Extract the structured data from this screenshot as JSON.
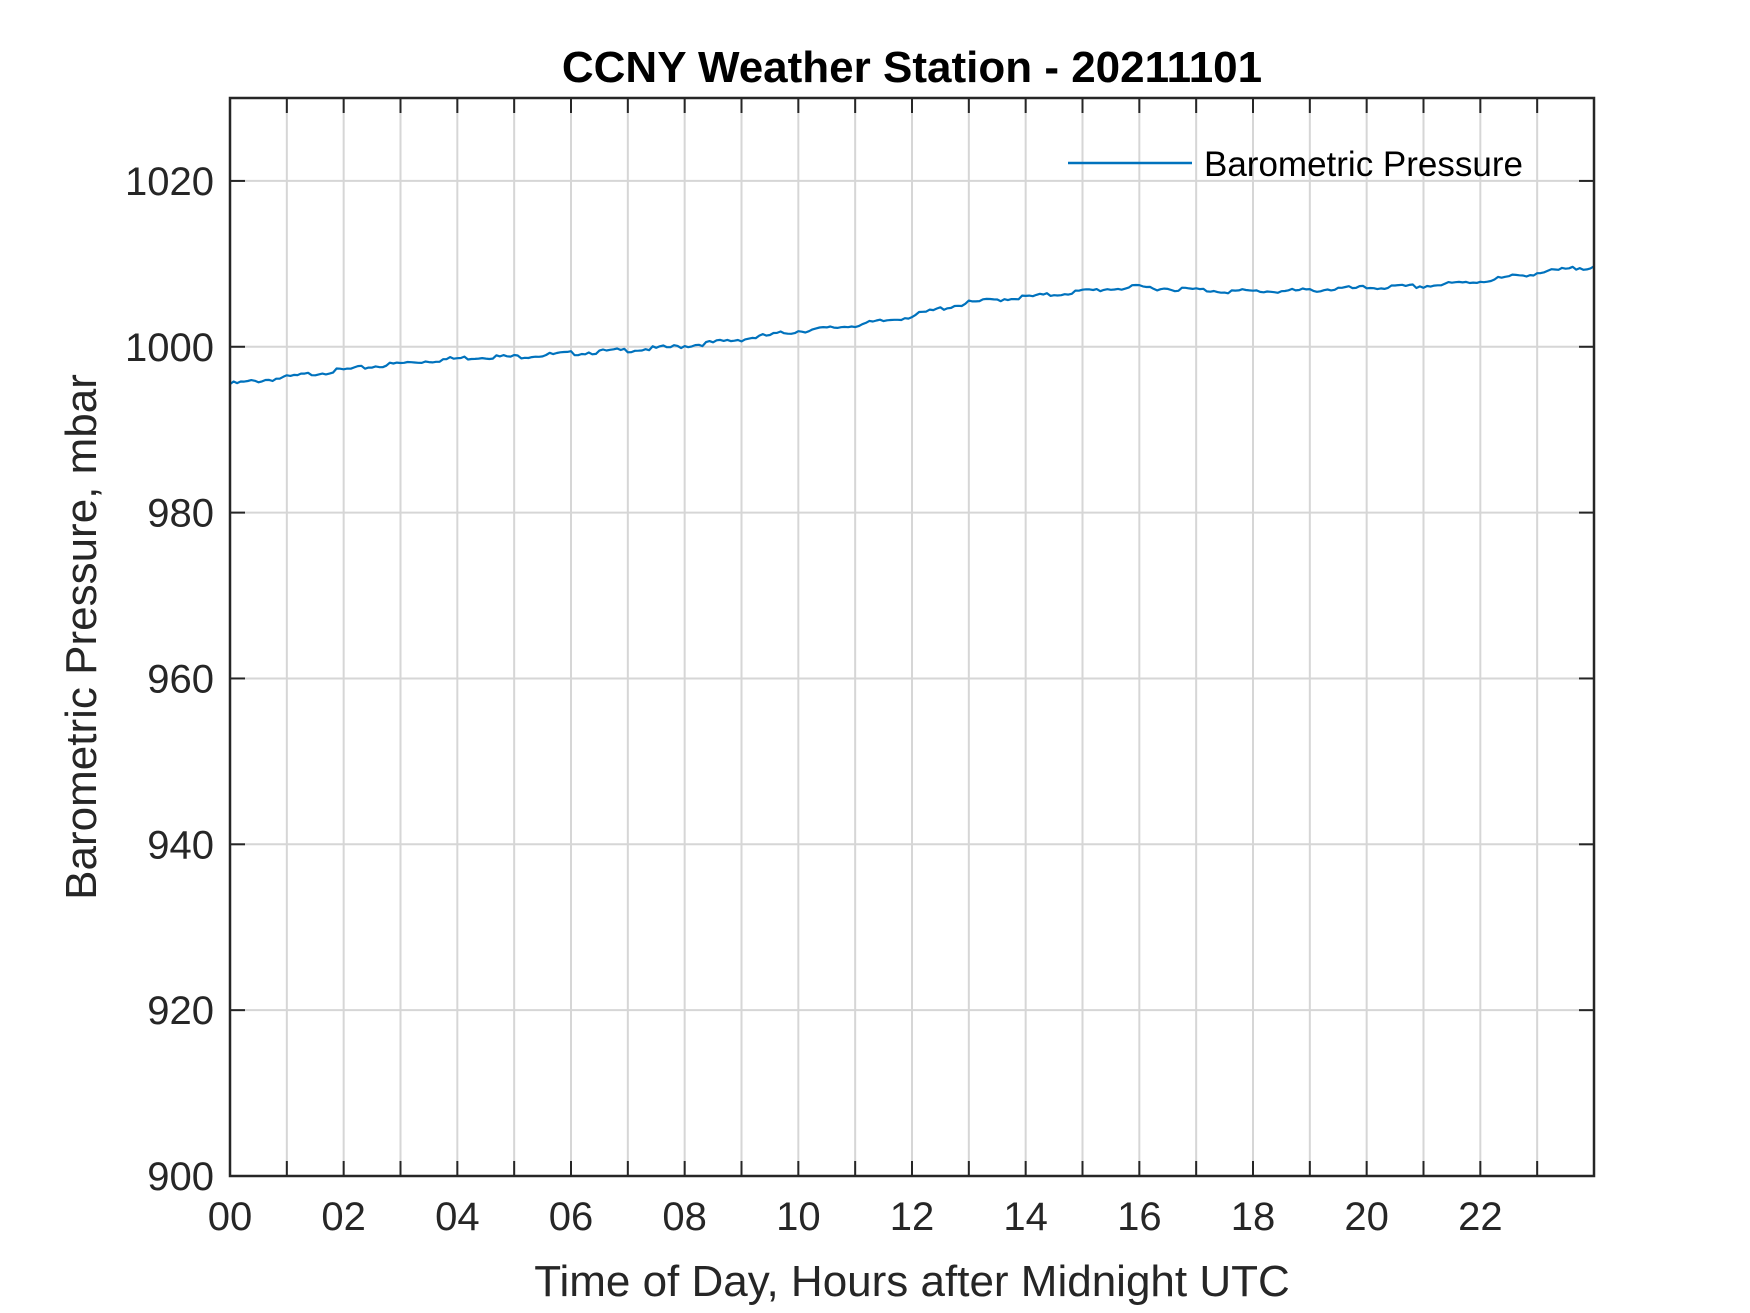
{
  "chart_data": {
    "type": "line",
    "title": "CCNY Weather Station - 20211101",
    "xlabel": "Time of Day, Hours after Midnight UTC",
    "ylabel": "Barometric Pressure, mbar",
    "xlim": [
      0,
      24
    ],
    "ylim": [
      900,
      1030
    ],
    "x_tick_values": [
      0,
      2,
      4,
      6,
      8,
      10,
      12,
      14,
      16,
      18,
      20,
      22
    ],
    "x_tick_labels": [
      "00",
      "02",
      "04",
      "06",
      "08",
      "10",
      "12",
      "14",
      "16",
      "18",
      "20",
      "22"
    ],
    "y_tick_values": [
      900,
      920,
      940,
      960,
      980,
      1000,
      1020
    ],
    "y_tick_labels": [
      "900",
      "920",
      "940",
      "960",
      "980",
      "1000",
      "1020"
    ],
    "grid": true,
    "legend_position": "top-right",
    "series": [
      {
        "name": "Barometric Pressure",
        "color": "#0072BD",
        "x": [
          0,
          0.5,
          1,
          1.5,
          2,
          2.5,
          3,
          3.5,
          4,
          4.5,
          5,
          5.5,
          6,
          6.5,
          7,
          7.5,
          8,
          8.5,
          9,
          9.5,
          10,
          10.5,
          11,
          11.5,
          12,
          12.5,
          13,
          13.5,
          14,
          14.5,
          15,
          15.5,
          16,
          16.5,
          17,
          17.5,
          18,
          18.5,
          19,
          19.5,
          20,
          20.5,
          21,
          21.5,
          22,
          22.5,
          23,
          23.5,
          24
        ],
        "y": [
          995.5,
          995.9,
          996.3,
          996.8,
          997.2,
          997.6,
          998.0,
          998.3,
          998.6,
          998.8,
          998.8,
          999.0,
          999.2,
          999.4,
          999.6,
          999.8,
          1000.1,
          1000.5,
          1000.9,
          1001.4,
          1001.9,
          1002.2,
          1002.6,
          1003.1,
          1003.7,
          1004.6,
          1005.3,
          1005.7,
          1006.0,
          1006.3,
          1006.7,
          1007.0,
          1007.2,
          1007.0,
          1006.9,
          1006.7,
          1006.7,
          1006.7,
          1006.8,
          1007.0,
          1007.1,
          1007.2,
          1007.3,
          1007.6,
          1007.9,
          1008.4,
          1008.9,
          1009.3,
          1009.7
        ]
      }
    ]
  }
}
